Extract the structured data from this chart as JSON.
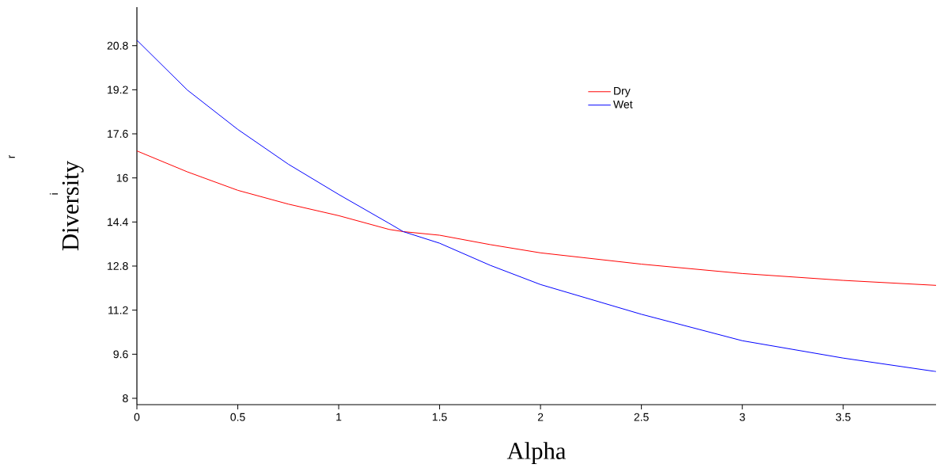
{
  "chart_data": {
    "type": "line",
    "xlabel": "Alpha",
    "ylabel": "Diversity",
    "annotations": [
      "r",
      "i"
    ],
    "x": [
      0,
      0.25,
      0.5,
      0.75,
      1,
      1.25,
      1.32,
      1.5,
      1.75,
      2,
      2.5,
      3,
      3.5,
      3.96
    ],
    "series": [
      {
        "name": "Dry",
        "color": "#ff0000",
        "values": [
          16.98,
          16.22,
          15.55,
          15.05,
          14.63,
          14.13,
          14.05,
          13.92,
          13.58,
          13.28,
          12.87,
          12.53,
          12.28,
          12.1
        ]
      },
      {
        "name": "Wet",
        "color": "#0000ff",
        "values": [
          21.0,
          19.19,
          17.76,
          16.5,
          15.4,
          14.35,
          14.05,
          13.63,
          12.83,
          12.13,
          11.05,
          10.09,
          9.46,
          8.97
        ]
      }
    ],
    "xlim": [
      0,
      3.96
    ],
    "ylim": [
      7.77,
      22.2
    ],
    "xticks": [
      0,
      0.5,
      1,
      1.5,
      2,
      2.5,
      3,
      3.5
    ],
    "yticks": [
      8,
      9.6,
      11.2,
      12.8,
      14.4,
      16,
      17.6,
      19.2,
      20.8
    ],
    "grid": false,
    "legend": "top right",
    "marker": "none",
    "line_style": "solid"
  }
}
